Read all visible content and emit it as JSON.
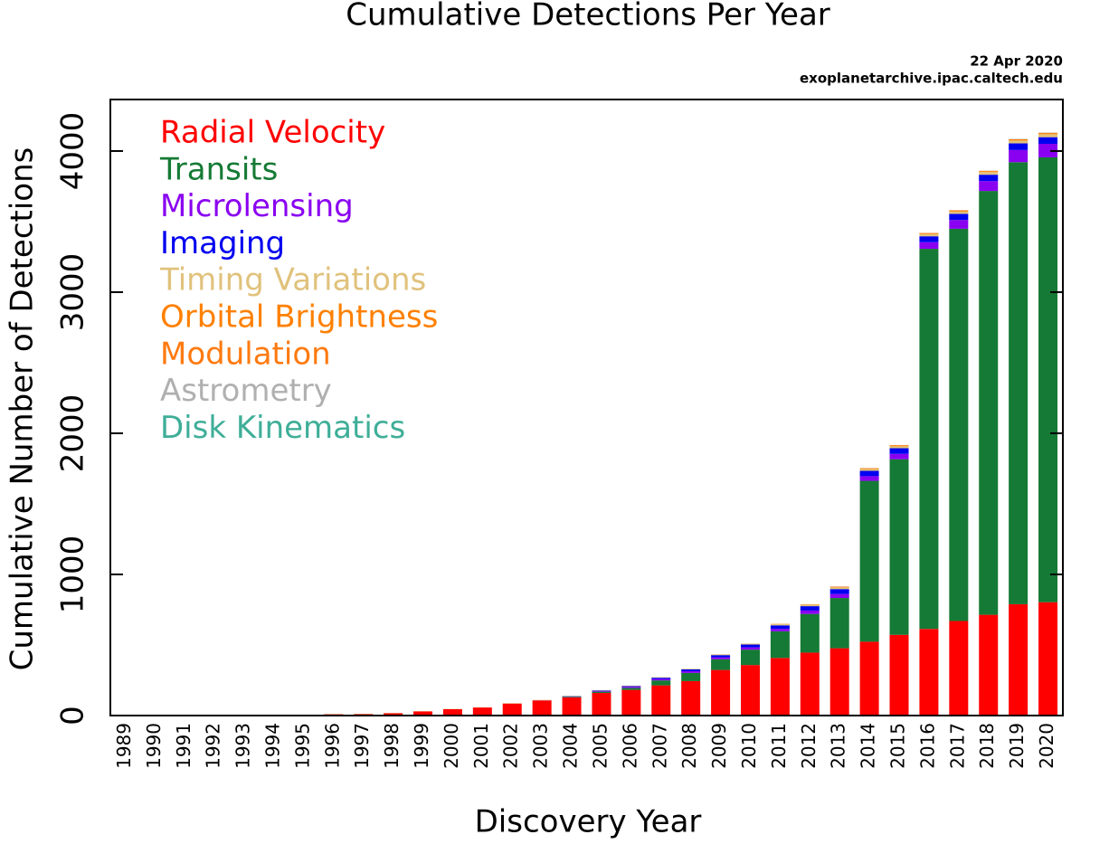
{
  "chart_data": {
    "type": "stacked_bar",
    "title": "Cumulative Detections Per Year",
    "annotations": [
      "22 Apr 2020",
      "exoplanetarchive.ipac.caltech.edu"
    ],
    "x_label": "Discovery Year",
    "y_label": "Cumulative Number of Detections",
    "categories": [
      "1989",
      "1990",
      "1991",
      "1992",
      "1993",
      "1994",
      "1995",
      "1996",
      "1997",
      "1998",
      "1999",
      "2000",
      "2001",
      "2002",
      "2003",
      "2004",
      "2005",
      "2006",
      "2007",
      "2008",
      "2009",
      "2010",
      "2011",
      "2012",
      "2013",
      "2014",
      "2015",
      "2016",
      "2017",
      "2018",
      "2019",
      "2020"
    ],
    "ylim": [
      0,
      4365
    ],
    "yticks": [
      0,
      1000,
      2000,
      3000,
      4000
    ],
    "legend": "upper left",
    "series": [
      {
        "name": "Radial Velocity",
        "color": "#ff0000",
        "values": [
          1,
          1,
          1,
          1,
          2,
          2,
          3,
          9,
          10,
          16,
          29,
          45,
          57,
          85,
          107,
          128,
          160,
          182,
          214,
          244,
          323,
          358,
          408,
          446,
          477,
          523,
          572,
          614,
          670,
          714,
          789,
          803
        ]
      },
      {
        "name": "Transits",
        "color": "#157a35",
        "values": [
          0,
          0,
          0,
          0,
          0,
          0,
          0,
          0,
          0,
          0,
          0,
          0,
          0,
          0,
          0,
          5,
          9,
          14,
          35,
          58,
          76,
          109,
          189,
          274,
          356,
          1140,
          1244,
          2693,
          2779,
          3003,
          3132,
          3152
        ]
      },
      {
        "name": "Microlensing",
        "color": "#8a00f0",
        "values": [
          0,
          0,
          0,
          0,
          0,
          0,
          0,
          0,
          0,
          0,
          0,
          0,
          0,
          0,
          1,
          2,
          4,
          8,
          10,
          12,
          13,
          16,
          17,
          24,
          28,
          33,
          38,
          47,
          62,
          70,
          86,
          96
        ]
      },
      {
        "name": "Imaging",
        "color": "#0000f0",
        "values": [
          0,
          0,
          0,
          0,
          0,
          0,
          0,
          0,
          0,
          0,
          0,
          0,
          0,
          0,
          0,
          2,
          4,
          5,
          9,
          13,
          16,
          20,
          25,
          31,
          35,
          38,
          40,
          42,
          44,
          45,
          47,
          47
        ]
      },
      {
        "name": "Timing Variations",
        "color": "#e0c27c",
        "values": [
          0,
          0,
          0,
          2,
          2,
          2,
          2,
          2,
          2,
          2,
          2,
          2,
          2,
          3,
          3,
          3,
          3,
          3,
          4,
          4,
          6,
          7,
          9,
          11,
          12,
          13,
          14,
          15,
          16,
          19,
          20,
          21
        ]
      },
      {
        "name": "Orbital Brightness",
        "color": "#ff8000",
        "values": [
          0,
          0,
          0,
          0,
          0,
          0,
          0,
          0,
          0,
          0,
          0,
          0,
          0,
          0,
          0,
          0,
          0,
          0,
          0,
          0,
          0,
          0,
          2,
          3,
          4,
          4,
          5,
          5,
          6,
          6,
          6,
          6
        ]
      },
      {
        "name": "Modulation",
        "color": "#ff7a10",
        "values": [
          0,
          0,
          0,
          0,
          0,
          0,
          0,
          0,
          0,
          0,
          0,
          0,
          0,
          0,
          0,
          0,
          0,
          0,
          0,
          0,
          0,
          0,
          0,
          0,
          2,
          2,
          3,
          3,
          3,
          3,
          4,
          4
        ]
      },
      {
        "name": "Astrometry",
        "color": "#b0b0b0",
        "values": [
          0,
          0,
          0,
          0,
          0,
          0,
          0,
          0,
          0,
          0,
          0,
          0,
          0,
          0,
          0,
          0,
          0,
          0,
          0,
          0,
          0,
          0,
          0,
          0,
          1,
          1,
          1,
          1,
          1,
          1,
          1,
          1
        ]
      },
      {
        "name": "Disk Kinematics",
        "color": "#3fae98",
        "values": [
          0,
          0,
          0,
          0,
          0,
          0,
          0,
          0,
          0,
          0,
          0,
          0,
          0,
          0,
          0,
          0,
          0,
          0,
          0,
          0,
          0,
          0,
          0,
          0,
          0,
          0,
          0,
          0,
          0,
          0,
          1,
          1
        ]
      }
    ]
  }
}
